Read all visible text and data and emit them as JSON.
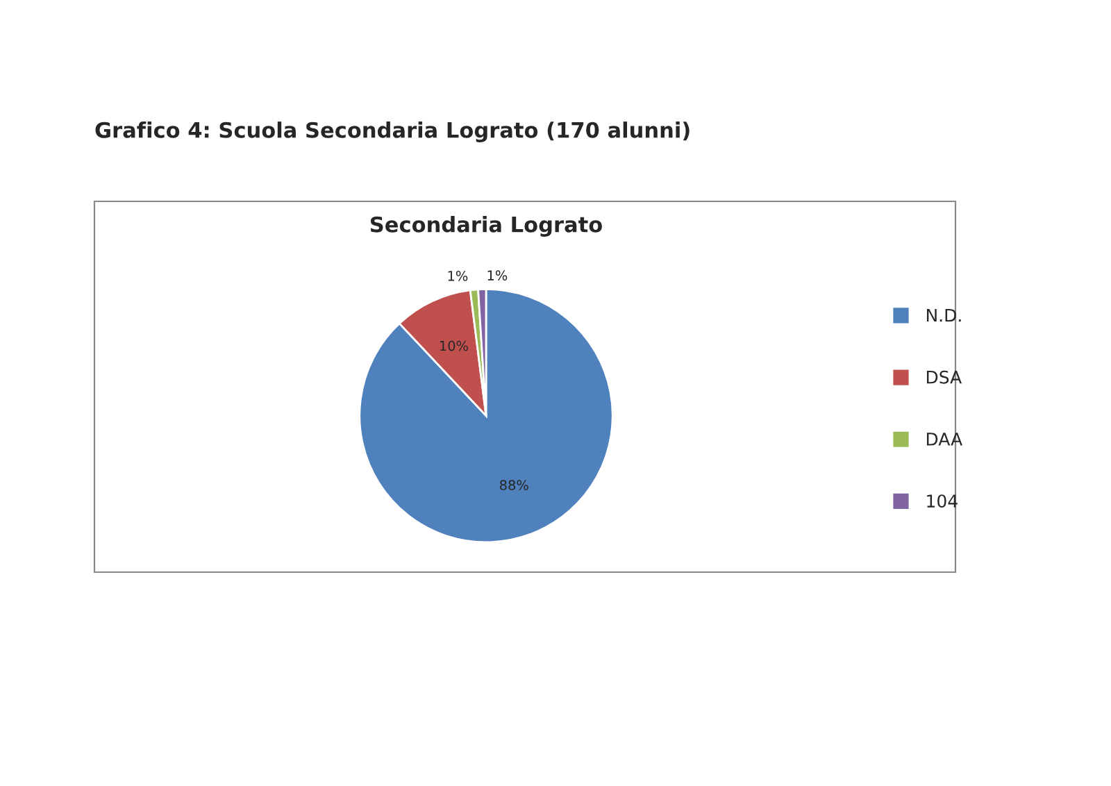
{
  "chart_data": {
    "type": "pie",
    "title": "Grafico 4: Scuola Secondaria Lograto (170 alunni)",
    "subtitle": "Secondaria Lograto",
    "categories": [
      "N.D.",
      "DSA",
      "DAA",
      "104"
    ],
    "values": [
      88,
      10,
      1,
      1
    ],
    "value_labels": [
      "88%",
      "10%",
      "1%",
      "1%"
    ],
    "colors": [
      "#4f81bd",
      "#c0504d",
      "#9bbb59",
      "#8064a2"
    ],
    "legend": "right"
  }
}
